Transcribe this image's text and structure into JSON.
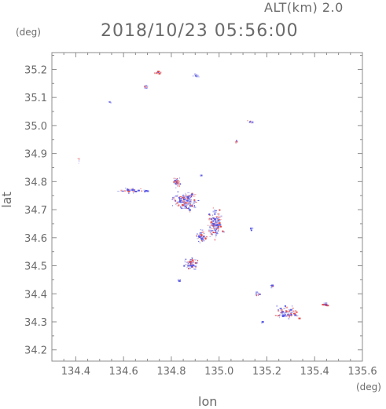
{
  "header": {
    "altitude": "ALT(km) 2.0",
    "timestamp": "2018/10/23 05:56:00"
  },
  "axes": {
    "x_unit": "(deg)",
    "y_unit": "(deg)",
    "x_label": "lon",
    "y_label": "lat",
    "x_range": [
      134.3,
      135.6
    ],
    "y_range": [
      34.16,
      35.26
    ],
    "x_ticks": [
      "134.4",
      "134.6",
      "134.8",
      "135.0",
      "135.2",
      "135.4",
      "135.6"
    ],
    "y_ticks": [
      "34.2",
      "34.3",
      "34.4",
      "34.5",
      "34.6",
      "34.7",
      "34.8",
      "34.9",
      "35.0",
      "35.1",
      "35.2"
    ]
  },
  "colors": {
    "axis": "#8c8c8c",
    "text": "#6a6a6a",
    "blue": "#5a5ae6",
    "red": "#e64a4a",
    "light_blue": "#b8b8f2",
    "pink": "#f0a0a0"
  },
  "chart_data": {
    "type": "scatter",
    "description_units": "lon/lat degrees",
    "x_ticks": [
      134.4,
      134.6,
      134.8,
      135.0,
      135.2,
      135.4,
      135.6
    ],
    "y_ticks": [
      34.2,
      34.3,
      34.4,
      34.5,
      34.6,
      34.7,
      34.8,
      34.9,
      35.0,
      35.1,
      35.2
    ],
    "xlim": [
      134.3,
      135.6
    ],
    "ylim": [
      34.16,
      35.26
    ],
    "clusters": [
      {
        "lon": 134.74,
        "lat": 35.19,
        "spread": [
          0.02,
          0.01
        ],
        "n": 14,
        "mix": 0.5
      },
      {
        "lon": 134.69,
        "lat": 35.14,
        "spread": [
          0.012,
          0.012
        ],
        "n": 12,
        "mix": 0.4
      },
      {
        "lon": 134.9,
        "lat": 35.18,
        "spread": [
          0.015,
          0.008
        ],
        "n": 10,
        "mix": 0.1
      },
      {
        "lon": 134.54,
        "lat": 35.085,
        "spread": [
          0.006,
          0.003
        ],
        "n": 4,
        "mix": 0.0
      },
      {
        "lon": 135.13,
        "lat": 35.015,
        "spread": [
          0.018,
          0.008
        ],
        "n": 10,
        "mix": 0.3
      },
      {
        "lon": 135.07,
        "lat": 34.945,
        "spread": [
          0.008,
          0.008
        ],
        "n": 6,
        "mix": 0.5
      },
      {
        "lon": 134.41,
        "lat": 34.875,
        "spread": [
          0.004,
          0.015
        ],
        "n": 4,
        "mix": 0.5
      },
      {
        "lon": 134.64,
        "lat": 34.77,
        "spread": [
          0.07,
          0.01
        ],
        "n": 40,
        "mix": 0.25
      },
      {
        "lon": 134.82,
        "lat": 34.8,
        "spread": [
          0.02,
          0.025
        ],
        "n": 35,
        "mix": 0.45
      },
      {
        "lon": 134.86,
        "lat": 34.73,
        "spread": [
          0.07,
          0.04
        ],
        "n": 160,
        "mix": 0.35
      },
      {
        "lon": 134.98,
        "lat": 34.65,
        "spread": [
          0.04,
          0.07
        ],
        "n": 140,
        "mix": 0.4
      },
      {
        "lon": 134.92,
        "lat": 34.61,
        "spread": [
          0.03,
          0.03
        ],
        "n": 40,
        "mix": 0.5
      },
      {
        "lon": 134.88,
        "lat": 34.51,
        "spread": [
          0.035,
          0.03
        ],
        "n": 70,
        "mix": 0.3
      },
      {
        "lon": 134.83,
        "lat": 34.45,
        "spread": [
          0.01,
          0.008
        ],
        "n": 6,
        "mix": 0.0
      },
      {
        "lon": 135.13,
        "lat": 34.635,
        "spread": [
          0.006,
          0.012
        ],
        "n": 5,
        "mix": 0.0
      },
      {
        "lon": 134.92,
        "lat": 34.825,
        "spread": [
          0.004,
          0.004
        ],
        "n": 2,
        "mix": 0.0
      },
      {
        "lon": 135.16,
        "lat": 34.4,
        "spread": [
          0.015,
          0.01
        ],
        "n": 10,
        "mix": 0.2
      },
      {
        "lon": 135.22,
        "lat": 34.43,
        "spread": [
          0.008,
          0.006
        ],
        "n": 5,
        "mix": 0.6
      },
      {
        "lon": 135.28,
        "lat": 34.335,
        "spread": [
          0.07,
          0.03
        ],
        "n": 70,
        "mix": 0.35
      },
      {
        "lon": 135.44,
        "lat": 34.365,
        "spread": [
          0.015,
          0.01
        ],
        "n": 14,
        "mix": 0.8
      },
      {
        "lon": 135.18,
        "lat": 34.3,
        "spread": [
          0.008,
          0.005
        ],
        "n": 4,
        "mix": 0.0
      }
    ]
  }
}
